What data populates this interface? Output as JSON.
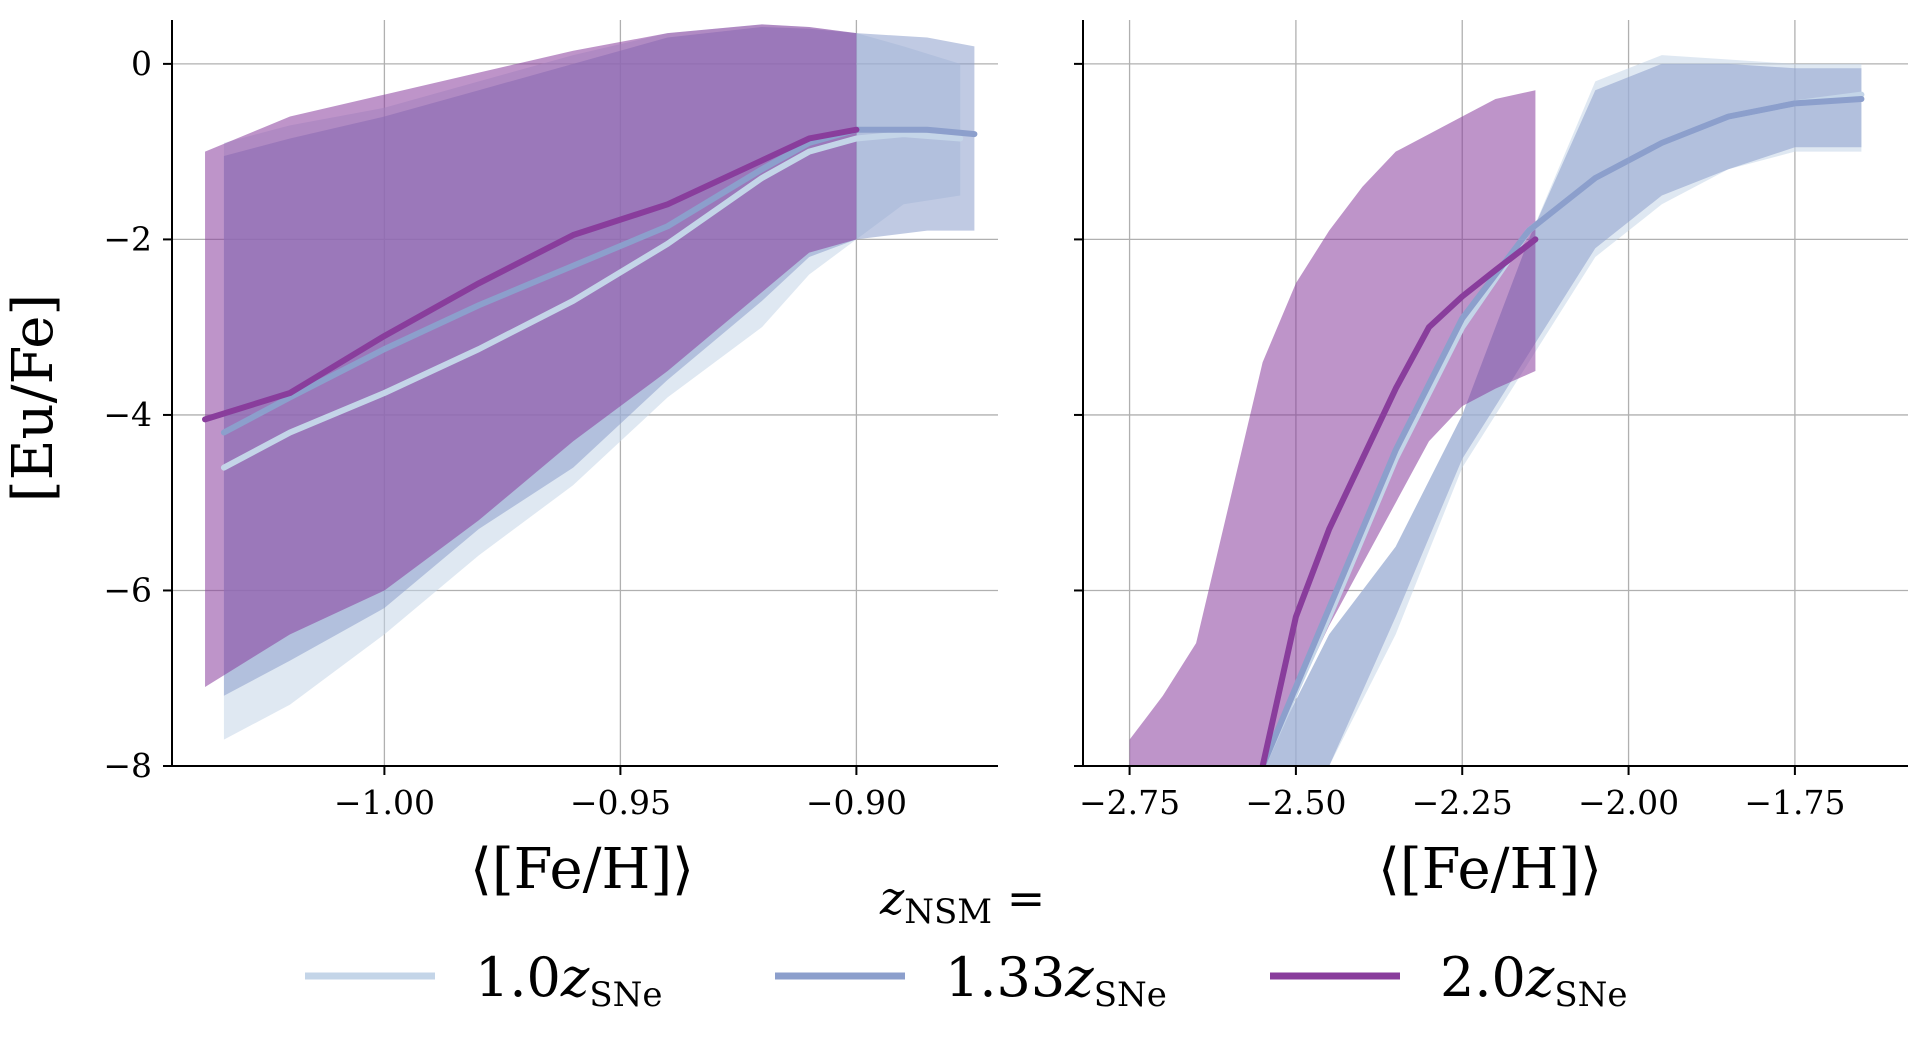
{
  "chart_data": [
    {
      "type": "area",
      "panel": "left",
      "xlabel": "⟨[Fe/H]⟩",
      "ylabel": "[Eu/Fe]",
      "xlim": [
        -1.045,
        -0.87
      ],
      "ylim": [
        -8,
        0.5
      ],
      "xticks": [
        -1.0,
        -0.95,
        -0.9
      ],
      "xtick_labels": [
        "−1.00",
        "−0.95",
        "−0.90"
      ],
      "yticks": [
        0,
        -2,
        -4,
        -6,
        -8
      ],
      "ytick_labels": [
        "0",
        "−2",
        "−4",
        "−6",
        "−8"
      ],
      "grid": true,
      "series": [
        {
          "key": "z1",
          "x": [
            -1.034,
            -1.02,
            -1.0,
            -0.98,
            -0.96,
            -0.94,
            -0.92,
            -0.91,
            -0.9,
            -0.89,
            -0.878
          ],
          "upper": [
            -0.9,
            -0.7,
            -0.5,
            -0.2,
            0.1,
            0.35,
            0.45,
            0.42,
            0.35,
            0.2,
            0.0
          ],
          "lower": [
            -7.7,
            -7.3,
            -6.5,
            -5.6,
            -4.8,
            -3.8,
            -3.0,
            -2.4,
            -2.0,
            -1.6,
            -1.5
          ],
          "values": [
            -4.6,
            -4.2,
            -3.75,
            -3.25,
            -2.7,
            -2.05,
            -1.3,
            -1.0,
            -0.85,
            -0.8,
            -0.85
          ]
        },
        {
          "key": "z133",
          "x": [
            -1.034,
            -1.02,
            -1.0,
            -0.98,
            -0.96,
            -0.94,
            -0.92,
            -0.91,
            -0.9,
            -0.885,
            -0.875
          ],
          "upper": [
            -1.05,
            -0.85,
            -0.6,
            -0.3,
            0.0,
            0.3,
            0.42,
            0.4,
            0.35,
            0.3,
            0.2
          ],
          "lower": [
            -7.2,
            -6.8,
            -6.2,
            -5.3,
            -4.6,
            -3.6,
            -2.7,
            -2.2,
            -2.0,
            -1.9,
            -1.9
          ],
          "values": [
            -4.2,
            -3.8,
            -3.25,
            -2.75,
            -2.3,
            -1.85,
            -1.2,
            -0.9,
            -0.75,
            -0.75,
            -0.8
          ]
        },
        {
          "key": "z2",
          "x": [
            -1.038,
            -1.02,
            -1.0,
            -0.98,
            -0.96,
            -0.94,
            -0.92,
            -0.91,
            -0.9
          ],
          "upper": [
            -1.0,
            -0.6,
            -0.35,
            -0.1,
            0.15,
            0.35,
            0.45,
            0.42,
            0.35
          ],
          "lower": [
            -7.1,
            -6.5,
            -6.0,
            -5.2,
            -4.3,
            -3.5,
            -2.6,
            -2.15,
            -2.0
          ],
          "values": [
            -4.05,
            -3.75,
            -3.1,
            -2.5,
            -1.95,
            -1.6,
            -1.1,
            -0.85,
            -0.75
          ]
        }
      ]
    },
    {
      "type": "area",
      "panel": "right",
      "xlabel": "⟨[Fe/H]⟩",
      "ylabel": "",
      "xlim": [
        -2.82,
        -1.58
      ],
      "ylim": [
        -8,
        0.5
      ],
      "xticks": [
        -2.75,
        -2.5,
        -2.25,
        -2.0,
        -1.75
      ],
      "xtick_labels": [
        "−2.75",
        "−2.50",
        "−2.25",
        "−2.00",
        "−1.75"
      ],
      "yticks": [
        0,
        -2,
        -4,
        -6,
        -8
      ],
      "ytick_labels": [
        "",
        "",
        "",
        "",
        ""
      ],
      "grid": true,
      "series": [
        {
          "key": "z1",
          "x": [
            -2.75,
            -2.65,
            -2.55,
            -2.45,
            -2.35,
            -2.25,
            -2.15,
            -2.05,
            -1.95,
            -1.85,
            -1.75,
            -1.65
          ],
          "upper": [
            -8.0,
            -8.0,
            -8.0,
            -6.5,
            -5.5,
            -4.0,
            -2.0,
            -0.2,
            0.1,
            0.05,
            0.0,
            0.0
          ],
          "lower": [
            -8.0,
            -8.0,
            -8.0,
            -8.0,
            -6.5,
            -4.6,
            -3.4,
            -2.2,
            -1.6,
            -1.2,
            -1.0,
            -1.0
          ],
          "values": [
            null,
            null,
            -8.0,
            -6.3,
            -4.5,
            -3.0,
            -1.9,
            -1.3,
            -0.9,
            -0.6,
            -0.45,
            -0.35
          ]
        },
        {
          "key": "z133",
          "x": [
            -2.75,
            -2.65,
            -2.55,
            -2.45,
            -2.35,
            -2.25,
            -2.15,
            -2.05,
            -1.95,
            -1.85,
            -1.75,
            -1.65
          ],
          "upper": [
            -8.0,
            -8.0,
            -8.0,
            -6.5,
            -5.5,
            -4.0,
            -2.0,
            -0.3,
            0.0,
            0.0,
            -0.05,
            -0.05
          ],
          "lower": [
            -8.0,
            -8.0,
            -8.0,
            -8.0,
            -6.3,
            -4.5,
            -3.3,
            -2.1,
            -1.5,
            -1.2,
            -0.95,
            -0.95
          ],
          "values": [
            null,
            null,
            -8.0,
            -6.2,
            -4.4,
            -2.9,
            -1.9,
            -1.3,
            -0.9,
            -0.6,
            -0.45,
            -0.4
          ]
        },
        {
          "key": "z2",
          "x": [
            -2.75,
            -2.7,
            -2.65,
            -2.6,
            -2.55,
            -2.5,
            -2.45,
            -2.4,
            -2.35,
            -2.3,
            -2.25,
            -2.2,
            -2.14
          ],
          "upper": [
            -7.7,
            -7.2,
            -6.6,
            -5.0,
            -3.4,
            -2.5,
            -1.9,
            -1.4,
            -1.0,
            -0.8,
            -0.6,
            -0.4,
            -0.3
          ],
          "lower": [
            -8.0,
            -8.0,
            -8.0,
            -8.0,
            -8.0,
            -7.2,
            -6.4,
            -5.7,
            -5.0,
            -4.3,
            -3.9,
            -3.7,
            -3.5
          ],
          "values": [
            null,
            null,
            null,
            null,
            -8.0,
            -6.3,
            -5.3,
            -4.5,
            -3.7,
            -3.0,
            -2.65,
            -2.35,
            -2.0
          ]
        }
      ]
    }
  ],
  "legend": {
    "title": "z",
    "title_sub": "NSM",
    "title_suffix": " =",
    "placement": "bottom-center",
    "entries": [
      {
        "key": "z1",
        "coef": "1.0",
        "symbol": "z",
        "sub": "SNe",
        "color": "#c4d5e8"
      },
      {
        "key": "z133",
        "coef": "1.33",
        "symbol": "z",
        "sub": "SNe",
        "color": "#8c9fcc"
      },
      {
        "key": "z2",
        "coef": "2.0",
        "symbol": "z",
        "sub": "SNe",
        "color": "#893d9c"
      }
    ]
  },
  "colors": {
    "z1": "#c4d5e8",
    "z133": "#8c9fcc",
    "z2": "#893d9c",
    "grid": "#b0b0b0",
    "axis": "#000000"
  }
}
